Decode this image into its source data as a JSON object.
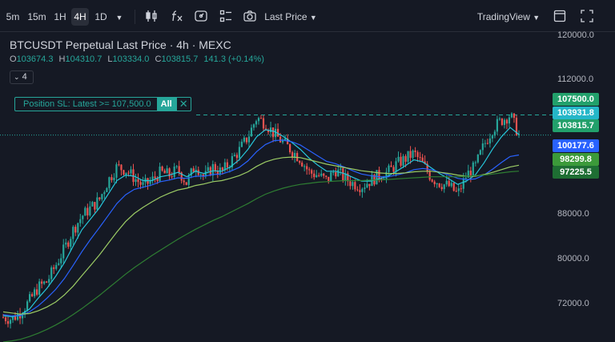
{
  "toolbar": {
    "intervals": [
      "5m",
      "15m",
      "1H",
      "4H",
      "1D"
    ],
    "active_interval": "4H",
    "price_type": "Last Price",
    "chart_engine": "TradingView"
  },
  "legend": {
    "title": "BTCUSDT Perpetual Last Price · 4h · MEXC",
    "open_label": "O",
    "open": "103674.3",
    "high_label": "H",
    "high": "104310.7",
    "low_label": "L",
    "low": "103334.0",
    "close_label": "C",
    "close": "103815.7",
    "change": "141.3 (+0.14%)",
    "indicator_count": "4"
  },
  "position_sl": {
    "label": "Position SL: Latest >= 107,500.0",
    "all_button": "All",
    "close_icon": "✕"
  },
  "price_scale": {
    "ticks": [
      "120000.0",
      "112000.0",
      "88000.0",
      "80000.0",
      "72000.0"
    ],
    "labels": [
      {
        "text": "107500.0",
        "color": "#22a06b"
      },
      {
        "text": "103931.8",
        "color": "#25b7c9"
      },
      {
        "text": "103815.7",
        "color": "#22a06b"
      },
      {
        "text": "100177.6",
        "color": "#2962ff"
      },
      {
        "text": "98299.8",
        "color": "#3c9a3a"
      },
      {
        "text": "97225.5",
        "color": "#1e6e33"
      }
    ]
  },
  "colors": {
    "up": "#26a69a",
    "down": "#ef5350",
    "ema_fast": "#26c6da",
    "ema_mid": "#2962ff",
    "ema_slow": "#9ccc65",
    "ema_long": "#2e7d32",
    "sl_line": "#26a69a"
  },
  "chart_data": {
    "type": "line",
    "title": "BTCUSDT Perpetual Last Price · 4h · MEXC",
    "ylim": [
      66000,
      122500
    ],
    "ytick_labels": [
      "120000.0",
      "112000.0",
      "88000.0",
      "80000.0",
      "72000.0"
    ],
    "grid": false,
    "candles_close_path": [
      70500,
      70200,
      71500,
      73500,
      76000,
      77000,
      80000,
      83000,
      86500,
      89000,
      90500,
      92000,
      95500,
      98000,
      97500,
      96000,
      94500,
      95500,
      97000,
      96500,
      97500,
      95000,
      98500,
      96000,
      98000,
      97000,
      99000,
      101000,
      103500,
      107000,
      106000,
      104000,
      102500,
      101000,
      99500,
      97000,
      96500,
      95500,
      97500,
      96000,
      95000,
      94500,
      95500,
      96500,
      97000,
      98500,
      99500,
      100500,
      98500,
      96000,
      95000,
      94500,
      93000,
      96500,
      98000,
      102000,
      105000,
      106500,
      107500,
      103800
    ],
    "series": [
      {
        "name": "",
        "values": [
          70800,
          70600,
          71000,
          72000,
          74000,
          75800,
          78000,
          80500,
          83500,
          86500,
          88500,
          90500,
          93000,
          95500,
          96500,
          96300,
          95500,
          95500,
          96200,
          96500,
          97000,
          96200,
          97200,
          96800,
          97300,
          97200,
          98000,
          99300,
          101200,
          103500,
          104800,
          104500,
          103600,
          102500,
          101200,
          99600,
          98300,
          97200,
          97200,
          96800,
          96100,
          95400,
          95400,
          95800,
          96300,
          97200,
          98200,
          99300,
          98900,
          97800,
          96700,
          95800,
          94800,
          95400,
          96500,
          98700,
          101300,
          103500,
          105200,
          103932
        ]
      },
      {
        "name": "",
        "values": [
          71000,
          70800,
          70800,
          71500,
          72600,
          74000,
          75600,
          77600,
          80000,
          82500,
          84800,
          86900,
          89100,
          91300,
          92900,
          93900,
          94300,
          94700,
          95300,
          95600,
          96000,
          95900,
          96300,
          96300,
          96600,
          96700,
          97200,
          97900,
          99100,
          100800,
          102100,
          102800,
          102900,
          102600,
          102000,
          101000,
          100000,
          99000,
          98600,
          98000,
          97300,
          96700,
          96400,
          96200,
          96200,
          96500,
          96900,
          97500,
          97700,
          97500,
          97000,
          96500,
          95900,
          95700,
          95800,
          96500,
          97600,
          98800,
          99900,
          100178
        ]
      },
      {
        "name": "",
        "values": [
          71500,
          71300,
          71100,
          71200,
          71700,
          72400,
          73300,
          74600,
          76200,
          78100,
          80000,
          81900,
          84000,
          86100,
          88000,
          89500,
          90600,
          91600,
          92500,
          93200,
          93800,
          94100,
          94600,
          94900,
          95300,
          95500,
          95900,
          96400,
          97100,
          98100,
          98900,
          99400,
          99700,
          99800,
          99700,
          99300,
          98900,
          98500,
          98200,
          97900,
          97600,
          97300,
          97100,
          96900,
          96800,
          96800,
          96900,
          97100,
          97200,
          97200,
          97000,
          96800,
          96500,
          96300,
          96300,
          96600,
          97000,
          97500,
          98000,
          98300
        ]
      },
      {
        "name": "",
        "values": [
          66000,
          66200,
          66500,
          67000,
          67600,
          68300,
          69100,
          70000,
          71000,
          72100,
          73300,
          74500,
          75800,
          77100,
          78400,
          79600,
          80700,
          81800,
          82800,
          83800,
          84800,
          85700,
          86600,
          87400,
          88200,
          88900,
          89700,
          90500,
          91300,
          92200,
          93000,
          93600,
          94100,
          94500,
          94800,
          95000,
          95200,
          95300,
          95400,
          95500,
          95500,
          95500,
          95600,
          95600,
          95700,
          95800,
          95900,
          96000,
          96100,
          96200,
          96200,
          96200,
          96200,
          96300,
          96400,
          96500,
          96700,
          96900,
          97100,
          97226
        ]
      }
    ],
    "annotations": [
      "Position SL: Latest >= 107,500.0"
    ]
  }
}
